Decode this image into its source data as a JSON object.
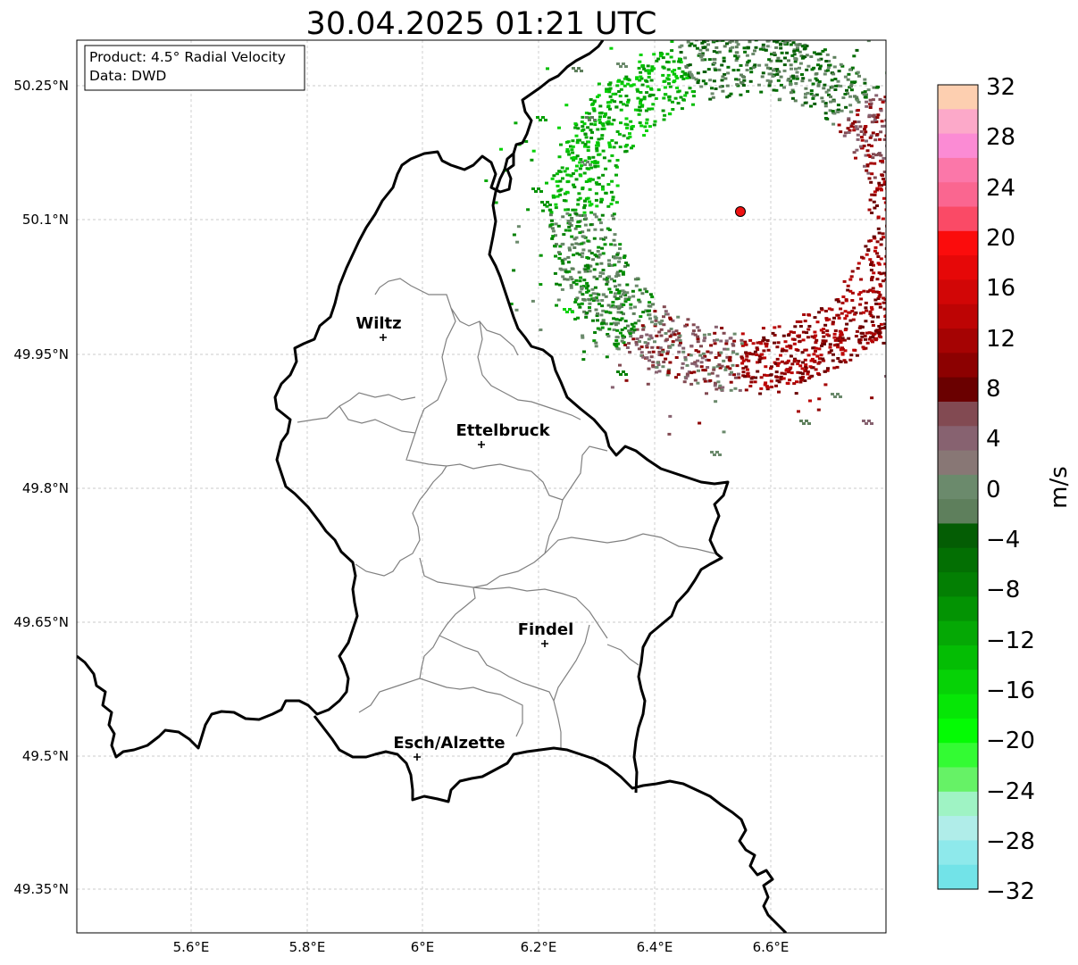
{
  "title": "30.04.2025 01:21 UTC",
  "info": {
    "product": "Product: 4.5° Radial Velocity",
    "data": "Data: DWD"
  },
  "axes": {
    "lat_ticks": [
      "50.25°N",
      "50.1°N",
      "49.95°N",
      "49.8°N",
      "49.65°N",
      "49.5°N",
      "49.35°N"
    ],
    "lon_ticks": [
      "5.6°E",
      "5.8°E",
      "6°E",
      "6.2°E",
      "6.4°E",
      "6.6°E"
    ]
  },
  "cities": [
    {
      "name": "Wiltz"
    },
    {
      "name": "Ettelbruck"
    },
    {
      "name": "Findel"
    },
    {
      "name": "Esch/Alzette"
    }
  ],
  "colorbar": {
    "label": "m/s",
    "ticks": [
      "32",
      "28",
      "24",
      "20",
      "16",
      "12",
      "8",
      "4",
      "0",
      "−4",
      "−8",
      "−12",
      "−16",
      "−20",
      "−24",
      "−28",
      "−32"
    ],
    "colors_top_to_bottom": [
      "#fdcfb0",
      "#fca9c9",
      "#fb8bd4",
      "#fb77a9",
      "#fa6690",
      "#fa4a66",
      "#fb0c0c",
      "#e60808",
      "#d20606",
      "#bd0404",
      "#a50303",
      "#8c0101",
      "#6a0000",
      "#824a52",
      "#876270",
      "#887775",
      "#6b8a6c",
      "#5e7f5c",
      "#045d04",
      "#036f03",
      "#037f03",
      "#039303",
      "#05a805",
      "#04bd04",
      "#06d206",
      "#06e606",
      "#04fb04",
      "#33fb33",
      "#66f266",
      "#9ff3c4",
      "#b0ede9",
      "#8ee9eb",
      "#72e3e8"
    ]
  },
  "radar_site": {
    "color": "#ee1111"
  }
}
